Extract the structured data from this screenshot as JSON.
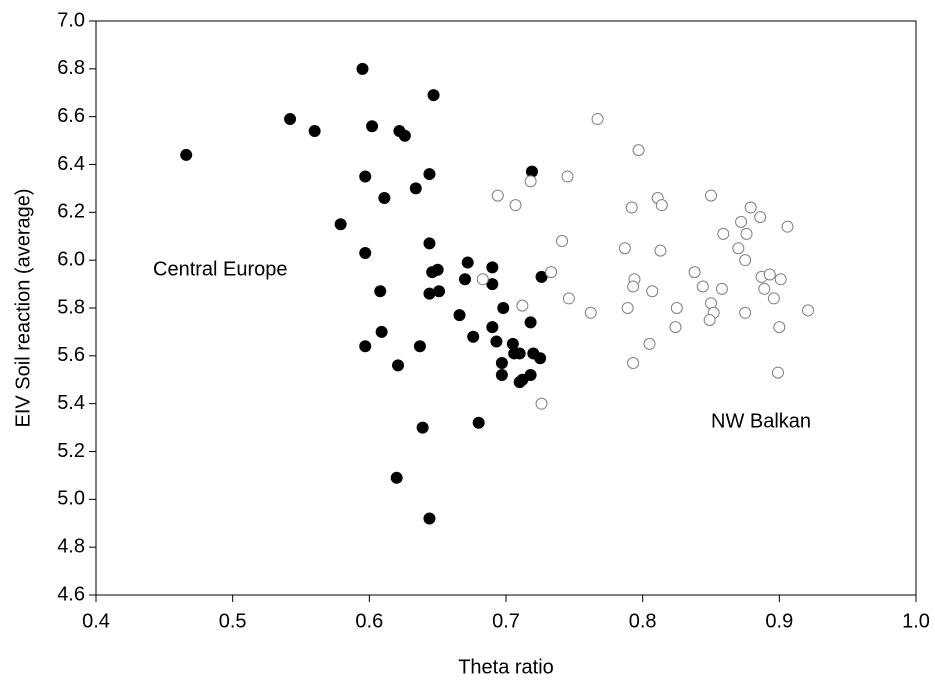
{
  "chart_data": {
    "type": "scatter",
    "x_label": "Theta ratio",
    "y_label": "EIV Soil reaction (average)",
    "xlim": [
      0.4,
      1.0
    ],
    "ylim": [
      4.6,
      7.0
    ],
    "xticks": [
      0.4,
      0.5,
      0.6,
      0.7,
      0.8,
      0.9,
      {
        "value": 1.0,
        "label": "1.0"
      }
    ],
    "yticks": [
      4.6,
      4.8,
      {
        "value": 5.0,
        "label": "5.0"
      },
      5.2,
      5.4,
      5.6,
      5.8,
      {
        "value": 6.0,
        "label": "6.0"
      },
      6.2,
      6.4,
      6.6,
      6.8,
      {
        "value": 7.0,
        "label": "7.0"
      }
    ],
    "grid": false,
    "series": [
      {
        "name": "Central Europe",
        "color": "#000000",
        "filled": true,
        "x": [
          0.466,
          0.542,
          0.56,
          0.595,
          0.602,
          0.622,
          0.626,
          0.647,
          0.597,
          0.579,
          0.611,
          0.634,
          0.644,
          0.719,
          0.597,
          0.644,
          0.672,
          0.646,
          0.65,
          0.69,
          0.67,
          0.69,
          0.726,
          0.608,
          0.651,
          0.644,
          0.698,
          0.666,
          0.69,
          0.718,
          0.609,
          0.676,
          0.693,
          0.705,
          0.597,
          0.637,
          0.706,
          0.71,
          0.72,
          0.725,
          0.697,
          0.621,
          0.697,
          0.718,
          0.712,
          0.71,
          0.68,
          0.639,
          0.62,
          0.644
        ],
        "values": [
          6.44,
          6.59,
          6.54,
          6.8,
          6.56,
          6.54,
          6.52,
          6.69,
          6.35,
          6.15,
          6.26,
          6.3,
          6.36,
          6.37,
          6.03,
          6.07,
          5.99,
          5.95,
          5.96,
          5.97,
          5.92,
          5.9,
          5.93,
          5.87,
          5.87,
          5.86,
          5.8,
          5.77,
          5.72,
          5.74,
          5.7,
          5.68,
          5.66,
          5.65,
          5.64,
          5.64,
          5.61,
          5.61,
          5.61,
          5.59,
          5.57,
          5.56,
          5.52,
          5.52,
          5.5,
          5.49,
          5.32,
          5.3,
          5.09,
          4.92
        ]
      },
      {
        "name": "NW Balkan",
        "color": "#808080",
        "filled": false,
        "x": [
          0.767,
          0.797,
          0.745,
          0.718,
          0.694,
          0.707,
          0.85,
          0.811,
          0.814,
          0.792,
          0.879,
          0.886,
          0.872,
          0.906,
          0.859,
          0.876,
          0.741,
          0.787,
          0.813,
          0.87,
          0.875,
          0.838,
          0.733,
          0.794,
          0.683,
          0.887,
          0.893,
          0.901,
          0.844,
          0.793,
          0.807,
          0.858,
          0.889,
          0.746,
          0.896,
          0.712,
          0.789,
          0.825,
          0.85,
          0.852,
          0.762,
          0.875,
          0.921,
          0.824,
          0.849,
          0.9,
          0.805,
          0.793,
          0.899,
          0.726
        ],
        "values": [
          6.59,
          6.46,
          6.35,
          6.33,
          6.27,
          6.23,
          6.27,
          6.26,
          6.23,
          6.22,
          6.22,
          6.18,
          6.16,
          6.14,
          6.11,
          6.11,
          6.08,
          6.05,
          6.04,
          6.05,
          6.0,
          5.95,
          5.95,
          5.92,
          5.92,
          5.93,
          5.94,
          5.92,
          5.89,
          5.89,
          5.87,
          5.88,
          5.88,
          5.84,
          5.84,
          5.81,
          5.8,
          5.8,
          5.82,
          5.78,
          5.78,
          5.78,
          5.79,
          5.72,
          5.75,
          5.72,
          5.65,
          5.57,
          5.53,
          5.4
        ]
      }
    ]
  }
}
